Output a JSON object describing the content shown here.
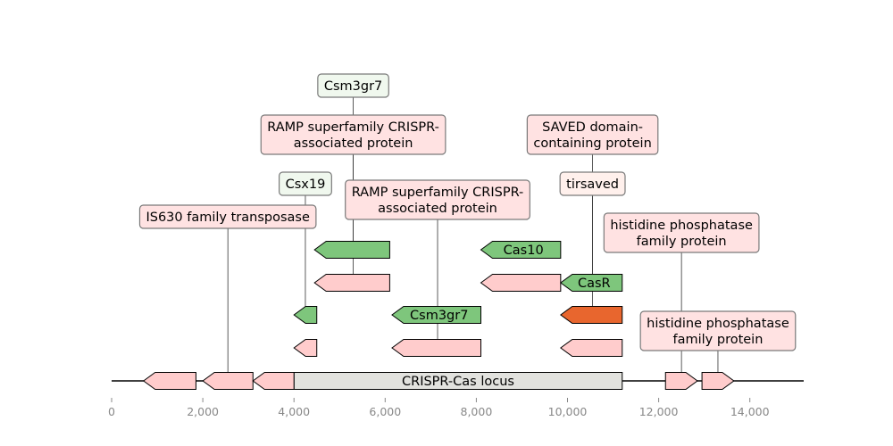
{
  "diagram": {
    "locus_label": "CRISPR-Cas locus",
    "axis": {
      "ticks": [
        0,
        2000,
        4000,
        6000,
        8000,
        10000,
        12000,
        14000
      ],
      "tick_labels": [
        "0",
        "2,000",
        "4,000",
        "6,000",
        "8,000",
        "10,000",
        "12,000",
        "14,000"
      ],
      "range": [
        -300,
        15200
      ]
    },
    "backbone_genes": [
      {
        "start": 700,
        "end": 1850,
        "strand": "-",
        "color": "#ffcccc"
      },
      {
        "start": 2000,
        "end": 3100,
        "strand": "-",
        "color": "#ffcccc"
      },
      {
        "start": 3100,
        "end": 4000,
        "strand": "-",
        "color": "#ffcccc"
      },
      {
        "start": 12150,
        "end": 12850,
        "strand": "+",
        "color": "#ffcccc"
      },
      {
        "start": 12950,
        "end": 13650,
        "strand": "+",
        "color": "#ffcccc"
      }
    ],
    "locus_region": {
      "start": 4000,
      "end": 11200,
      "color": "#e2e2de"
    },
    "track_genes": [
      {
        "row": 1,
        "start": 4450,
        "end": 6100,
        "strand": "-",
        "color": "#7ec67c",
        "label": ""
      },
      {
        "row": 1,
        "start": 8100,
        "end": 9850,
        "strand": "-",
        "color": "#7ec67c",
        "label": "Cas10"
      },
      {
        "row": 2,
        "start": 4450,
        "end": 6100,
        "strand": "-",
        "color": "#ffcccc",
        "label": ""
      },
      {
        "row": 2,
        "start": 8100,
        "end": 9850,
        "strand": "-",
        "color": "#ffcccc",
        "label": ""
      },
      {
        "row": 2,
        "start": 9850,
        "end": 11200,
        "strand": "-",
        "color": "#7ec67c",
        "label": "CasR"
      },
      {
        "row": 3,
        "start": 4000,
        "end": 4500,
        "strand": "-",
        "color": "#7ec67c",
        "label": ""
      },
      {
        "row": 3,
        "start": 6150,
        "end": 8100,
        "strand": "-",
        "color": "#7ec67c",
        "label": "Csm3gr7"
      },
      {
        "row": 3,
        "start": 9850,
        "end": 11200,
        "strand": "-",
        "color": "#e8662e",
        "label": ""
      },
      {
        "row": 4,
        "start": 4000,
        "end": 4500,
        "strand": "-",
        "color": "#ffcccc",
        "label": ""
      },
      {
        "row": 4,
        "start": 6150,
        "end": 8100,
        "strand": "-",
        "color": "#ffcccc",
        "label": ""
      },
      {
        "row": 4,
        "start": 9850,
        "end": 11200,
        "strand": "-",
        "color": "#ffcccc",
        "label": ""
      }
    ],
    "annotations": [
      {
        "text": [
          "Csm3gr7"
        ],
        "x": 5300,
        "box_color": "#f0f8ee",
        "tier": 0,
        "to_row": 1
      },
      {
        "text": [
          "RAMP superfamily CRISPR-",
          "associated protein"
        ],
        "x": 5300,
        "box_color": "#ffe2e2",
        "tier": 1,
        "to_row": 2
      },
      {
        "text": [
          "SAVED domain-",
          "containing protein"
        ],
        "x": 10550,
        "box_color": "#ffe2e2",
        "tier": 1,
        "to_row": 2
      },
      {
        "text": [
          "Csx19"
        ],
        "x": 4250,
        "box_color": "#f0f8ee",
        "tier": 2,
        "to_row": 3
      },
      {
        "text": [
          "tirsaved"
        ],
        "x": 10550,
        "box_color": "#fff0ec",
        "tier": 2,
        "to_row": 3
      },
      {
        "text": [
          "RAMP superfamily CRISPR-",
          "associated protein"
        ],
        "x": 7150,
        "box_color": "#ffe2e2",
        "tier": 3,
        "to_row": 4
      },
      {
        "text": [
          "IS630 family transposase"
        ],
        "x": 2550,
        "box_color": "#ffe2e2",
        "tier": 4,
        "to_row": 5
      },
      {
        "text": [
          "histidine phosphatase",
          "family protein"
        ],
        "x": 12500,
        "box_color": "#ffe2e2",
        "tier": 5,
        "to_row": 5
      },
      {
        "text": [
          "histidine phosphatase",
          "family protein"
        ],
        "x": 13300,
        "box_color": "#ffe2e2",
        "tier": 6,
        "to_row": 5
      }
    ]
  }
}
